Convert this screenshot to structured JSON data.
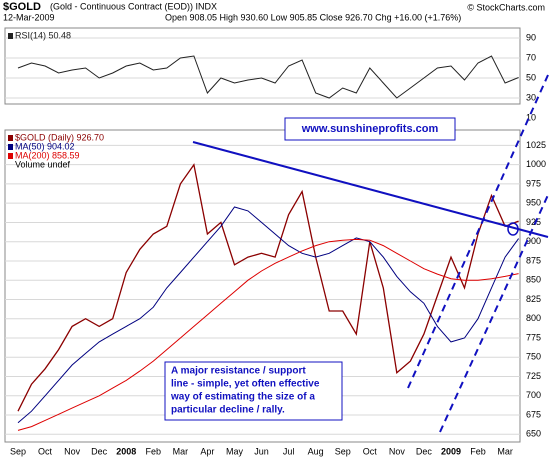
{
  "header": {
    "symbol": "$GOLD",
    "description": "(Gold - Continuous Contract (EOD)) INDX",
    "date": "12-Mar-2009",
    "quote": "Open 908.05 High 930.60 Low 905.85 Close 926.70 Chg +16.00 (+1.76%)",
    "credit": "© StockCharts.com"
  },
  "chart_data": [
    {
      "type": "line",
      "ylim": [
        10,
        100
      ],
      "yticks": [
        10,
        30,
        50,
        70,
        90
      ],
      "grid": true,
      "series": [
        {
          "name": "RSI(14) 50.48",
          "color": "#222222",
          "values": [
            60,
            65,
            62,
            55,
            58,
            60,
            50,
            55,
            62,
            65,
            58,
            60,
            70,
            72,
            35,
            50,
            45,
            48,
            50,
            45,
            62,
            68,
            35,
            30,
            40,
            35,
            60,
            45,
            30,
            40,
            50,
            60,
            62,
            48,
            65,
            72,
            45,
            50.48
          ]
        }
      ]
    },
    {
      "type": "line",
      "ylim": [
        640,
        1045
      ],
      "yticks": [
        650,
        675,
        700,
        725,
        750,
        775,
        800,
        825,
        850,
        875,
        900,
        925,
        950,
        975,
        1000,
        1025
      ],
      "grid": true,
      "categories": [
        "Sep",
        null,
        "Oct",
        null,
        "Nov",
        null,
        "Dec",
        null,
        "2008",
        null,
        "Feb",
        null,
        "Mar",
        null,
        "Apr",
        null,
        "May",
        null,
        "Jun",
        null,
        "Jul",
        null,
        "Aug",
        null,
        "Sep",
        null,
        "Oct",
        null,
        "Nov",
        null,
        "Dec",
        null,
        "2009",
        null,
        "Feb",
        null,
        "Mar",
        null
      ],
      "series": [
        {
          "name": "$GOLD (Daily) 926.70",
          "color": "#8b0000",
          "values": [
            680,
            715,
            735,
            760,
            790,
            800,
            790,
            800,
            860,
            890,
            910,
            920,
            975,
            1000,
            910,
            925,
            870,
            880,
            885,
            880,
            935,
            965,
            880,
            810,
            810,
            780,
            900,
            840,
            730,
            745,
            780,
            830,
            880,
            840,
            910,
            960,
            920,
            926.7
          ]
        },
        {
          "name": "MA(50) 904.02",
          "color": "#000080",
          "values": [
            665,
            680,
            700,
            720,
            740,
            755,
            770,
            780,
            790,
            800,
            815,
            840,
            860,
            880,
            900,
            920,
            945,
            940,
            925,
            910,
            895,
            885,
            880,
            885,
            895,
            905,
            900,
            880,
            855,
            835,
            820,
            790,
            770,
            775,
            800,
            840,
            880,
            904.02
          ]
        },
        {
          "name": "MA(200) 858.59",
          "color": "#dd0000",
          "values": [
            655,
            660,
            668,
            676,
            684,
            692,
            700,
            710,
            720,
            732,
            745,
            760,
            775,
            790,
            805,
            820,
            835,
            850,
            862,
            872,
            880,
            888,
            895,
            900,
            902,
            903,
            902,
            895,
            885,
            875,
            865,
            858,
            852,
            850,
            850,
            852,
            855,
            858.59
          ]
        }
      ],
      "legend_extra": "Volume undef",
      "annotations": {
        "website": "www.sunshineprofits.com",
        "note": [
          "A major resistance / support",
          "line - simple, yet often effective",
          "way of estimating the size of a",
          "particular decline / rally."
        ]
      }
    }
  ]
}
